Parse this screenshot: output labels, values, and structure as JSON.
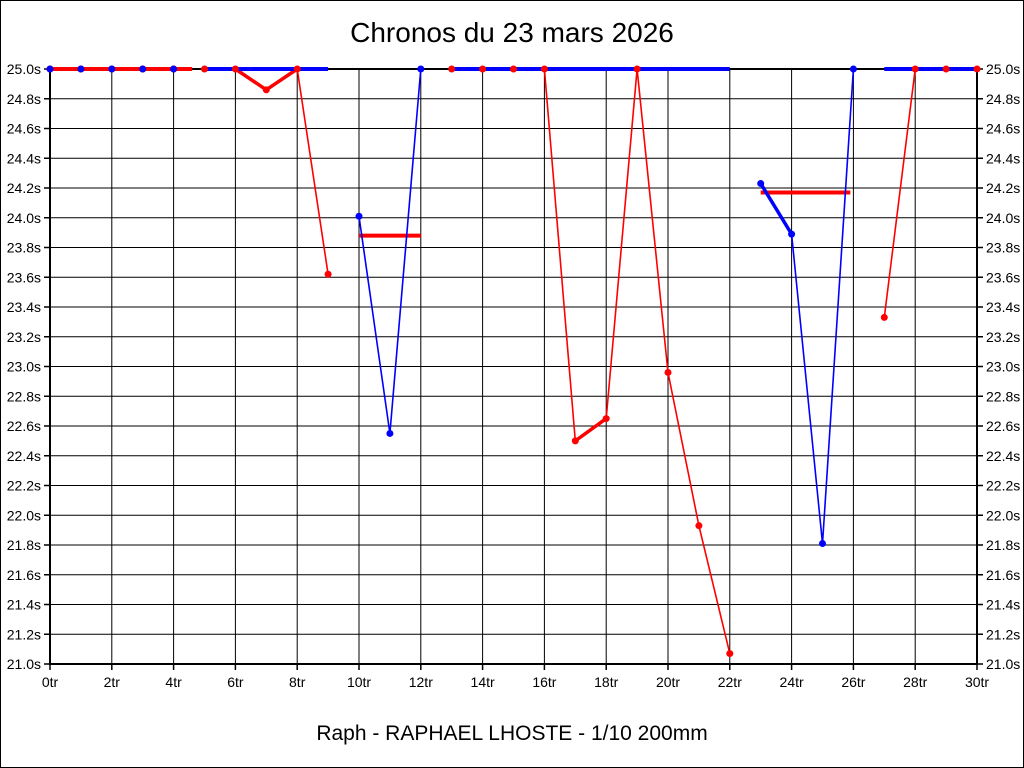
{
  "chart_data": {
    "type": "line",
    "title": "Chronos du 23 mars 2026",
    "caption": "Raph - RAPHAEL LHOSTE - 1/10 200mm",
    "x_unit": "tr",
    "y_unit": "s",
    "xlim": [
      0,
      30
    ],
    "ylim": [
      21.0,
      25.0
    ],
    "grid": "on",
    "legend": "none",
    "x_tick_values": [
      0,
      2,
      4,
      6,
      8,
      10,
      12,
      14,
      16,
      18,
      20,
      22,
      24,
      26,
      28,
      30
    ],
    "x_tick_labels": [
      "0tr",
      "2tr",
      "4tr",
      "6tr",
      "8tr",
      "10tr",
      "12tr",
      "14tr",
      "16tr",
      "18tr",
      "20tr",
      "22tr",
      "24tr",
      "26tr",
      "28tr",
      "30tr"
    ],
    "y_tick_values": [
      25.0,
      24.8,
      24.6,
      24.4,
      24.2,
      24.0,
      23.8,
      23.6,
      23.4,
      23.2,
      23.0,
      22.8,
      22.6,
      22.4,
      22.2,
      22.0,
      21.8,
      21.6,
      21.4,
      21.2,
      21.0
    ],
    "y_tick_labels": [
      "25.0s",
      "24.8s",
      "24.6s",
      "24.4s",
      "24.2s",
      "24.0s",
      "23.8s",
      "23.6s",
      "23.4s",
      "23.2s",
      "23.0s",
      "22.8s",
      "22.6s",
      "22.4s",
      "22.2s",
      "22.0s",
      "21.8s",
      "21.6s",
      "21.4s",
      "21.2s",
      "21.0s"
    ],
    "series": [
      {
        "name": "red",
        "color": "#ff0000",
        "flats": [
          {
            "x": [
              0,
              4.6
            ],
            "y": 25.0,
            "w": 4
          },
          {
            "x": [
              10,
              12
            ],
            "y": 23.88,
            "w": 4
          },
          {
            "x": [
              23,
              25.9
            ],
            "y": 24.17,
            "w": 4
          }
        ],
        "lines": [
          {
            "x": [
              5,
              6
            ],
            "y": [
              25.0,
              25.0
            ],
            "w": 2
          },
          {
            "x": [
              6,
              7,
              8
            ],
            "y": [
              25.0,
              24.86,
              25.0
            ],
            "w": 3.5
          },
          {
            "x": [
              8,
              9
            ],
            "y": [
              25.0,
              23.62
            ],
            "w": 1.6
          },
          {
            "x": [
              13,
              14,
              15,
              16,
              17
            ],
            "y": [
              25.0,
              25.0,
              25.0,
              25.0,
              22.5
            ],
            "w": 1.6
          },
          {
            "x": [
              17,
              18
            ],
            "y": [
              22.5,
              22.65
            ],
            "w": 3.5
          },
          {
            "x": [
              18,
              19,
              20,
              21,
              22
            ],
            "y": [
              22.65,
              25.0,
              22.96,
              21.93,
              21.07
            ],
            "w": 1.6
          },
          {
            "x": [
              27,
              28,
              29,
              30
            ],
            "y": [
              23.33,
              25.0,
              25.0,
              25.0
            ],
            "w": 1.6
          }
        ],
        "points": [
          [
            0,
            25.0
          ],
          [
            1,
            25.0
          ],
          [
            2,
            25.0
          ],
          [
            3,
            25.0
          ],
          [
            4,
            25.0
          ],
          [
            5,
            25.0
          ],
          [
            6,
            25.0
          ],
          [
            7,
            24.86
          ],
          [
            8,
            25.0
          ],
          [
            9,
            23.62
          ],
          [
            13,
            25.0
          ],
          [
            14,
            25.0
          ],
          [
            15,
            25.0
          ],
          [
            16,
            25.0
          ],
          [
            17,
            22.5
          ],
          [
            18,
            22.65
          ],
          [
            19,
            25.0
          ],
          [
            20,
            22.96
          ],
          [
            21,
            21.93
          ],
          [
            22,
            21.07
          ],
          [
            27,
            23.33
          ],
          [
            28,
            25.0
          ],
          [
            29,
            25.0
          ],
          [
            30,
            25.0
          ]
        ]
      },
      {
        "name": "blue",
        "color": "#0000ff",
        "flats": [
          {
            "x": [
              5,
              9
            ],
            "y": 25.0,
            "w": 4
          },
          {
            "x": [
              13,
              22
            ],
            "y": 25.0,
            "w": 4
          },
          {
            "x": [
              27,
              30
            ],
            "y": 25.0,
            "w": 4
          }
        ],
        "lines": [
          {
            "x": [
              10,
              11,
              12
            ],
            "y": [
              24.01,
              22.55,
              25.0
            ],
            "w": 1.6
          },
          {
            "x": [
              23,
              24
            ],
            "y": [
              24.23,
              23.89
            ],
            "w": 3.5
          },
          {
            "x": [
              24,
              25,
              26
            ],
            "y": [
              23.89,
              21.81,
              25.0
            ],
            "w": 1.6
          }
        ],
        "points": [
          [
            0,
            25.0
          ],
          [
            1,
            25.0
          ],
          [
            2,
            25.0
          ],
          [
            3,
            25.0
          ],
          [
            4,
            25.0
          ],
          [
            10,
            24.01
          ],
          [
            11,
            22.55
          ],
          [
            12,
            25.0
          ],
          [
            23,
            24.23
          ],
          [
            24,
            23.89
          ],
          [
            25,
            21.81
          ],
          [
            26,
            25.0
          ]
        ]
      }
    ]
  }
}
